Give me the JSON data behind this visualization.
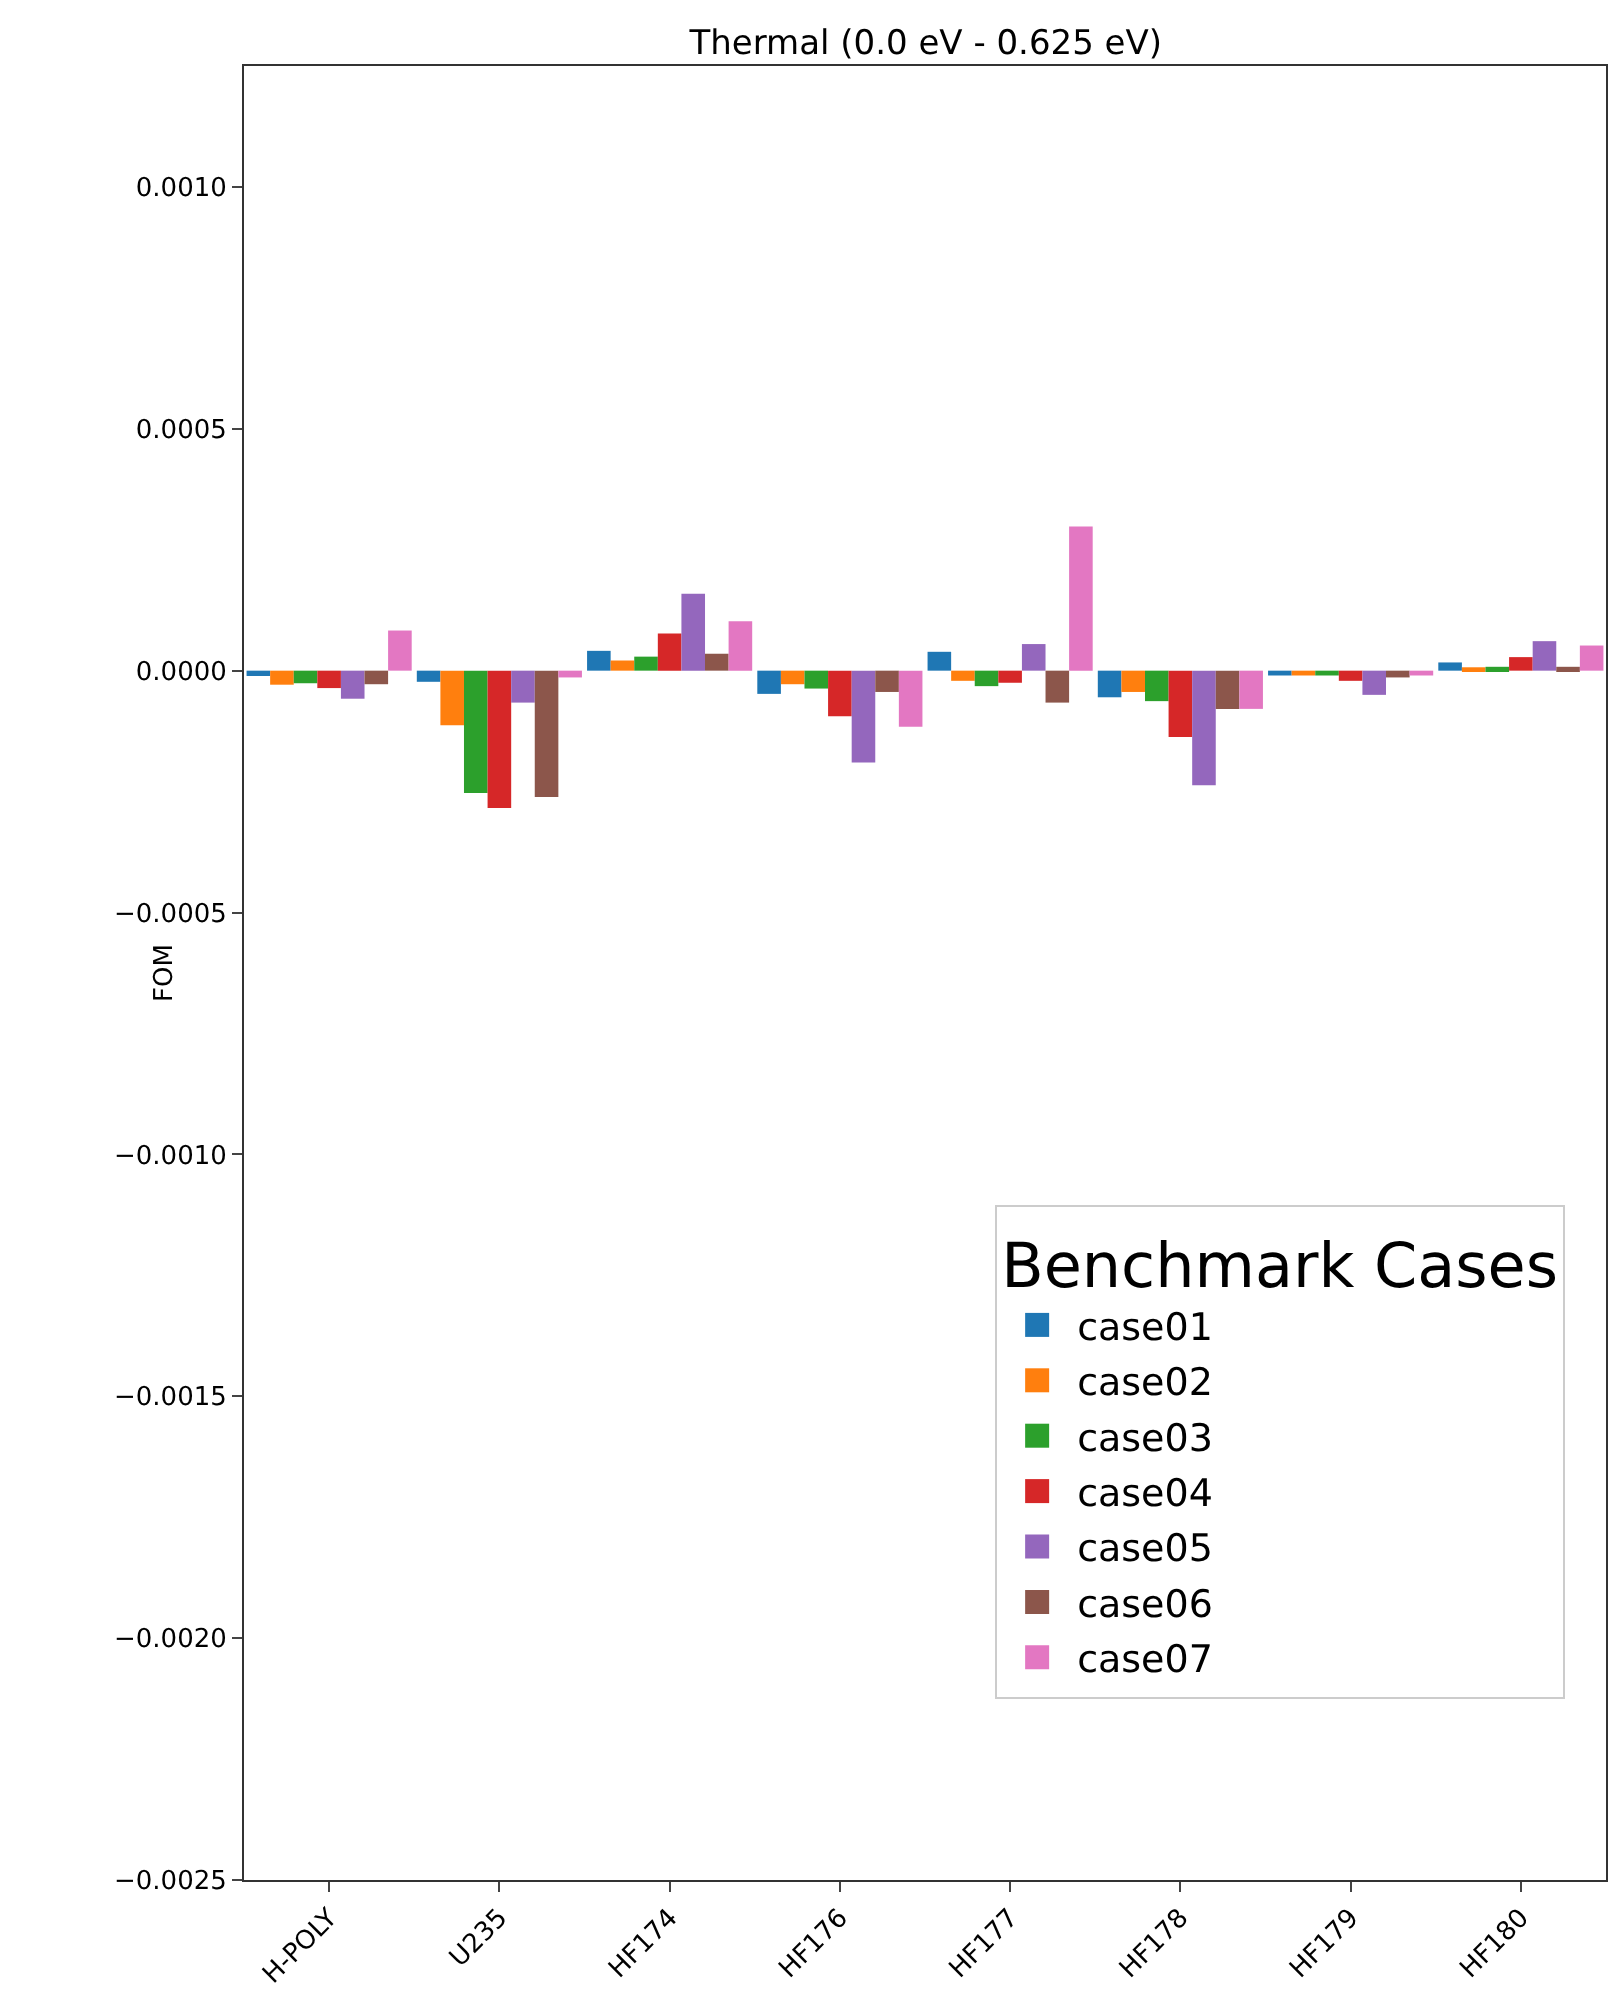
{
  "chart_data": {
    "type": "bar",
    "title": "Thermal (0.0 eV - 0.625 eV)",
    "ylabel": "FOM",
    "legend_title": "Benchmark Cases",
    "legend": "bottom right",
    "grid": false,
    "categories": [
      "H-POLY",
      "U235",
      "HF174",
      "HF176",
      "HF177",
      "HF178",
      "HF179",
      "HF180"
    ],
    "series": [
      {
        "name": "case01",
        "color": "#1f77b4",
        "values": [
          -1.1e-05,
          -2.3e-05,
          4.1e-05,
          -4.8e-05,
          3.9e-05,
          -5.5e-05,
          -1e-05,
          1.7e-05
        ]
      },
      {
        "name": "case02",
        "color": "#ff7f0e",
        "values": [
          -2.9e-05,
          -0.000113,
          2.1e-05,
          -2.8e-05,
          -2.1e-05,
          -4.4e-05,
          -1e-05,
          7e-06
        ]
      },
      {
        "name": "case03",
        "color": "#2ca02c",
        "values": [
          -2.6e-05,
          -0.000253,
          2.9e-05,
          -3.7e-05,
          -3.2e-05,
          -6.3e-05,
          -1e-05,
          8e-06
        ]
      },
      {
        "name": "case04",
        "color": "#d62728",
        "values": [
          -3.6e-05,
          -0.000284,
          7.7e-05,
          -9.4e-05,
          -2.5e-05,
          -0.000137,
          -2.1e-05,
          2.8e-05
        ]
      },
      {
        "name": "case05",
        "color": "#9467bd",
        "values": [
          -5.8e-05,
          -6.6e-05,
          0.000159,
          -0.00019,
          5.5e-05,
          -0.000237,
          -5e-05,
          6.1e-05
        ]
      },
      {
        "name": "case06",
        "color": "#8c564b",
        "values": [
          -2.8e-05,
          -0.000261,
          3.5e-05,
          -4.4e-05,
          -6.6e-05,
          -7.9e-05,
          -1.4e-05,
          8e-06
        ]
      },
      {
        "name": "case07",
        "color": "#e377c2",
        "values": [
          8.3e-05,
          -1.4e-05,
          0.000102,
          -0.000116,
          0.000298,
          -7.9e-05,
          -1e-05,
          5.2e-05
        ]
      }
    ],
    "ylim": [
      -0.0025,
      0.00125
    ],
    "yticks": [
      {
        "value": -0.0025,
        "label": "−0.0025"
      },
      {
        "value": -0.002,
        "label": "−0.0020"
      },
      {
        "value": -0.0015,
        "label": "−0.0015"
      },
      {
        "value": -0.001,
        "label": "−0.0010"
      },
      {
        "value": -0.0005,
        "label": "−0.0005"
      },
      {
        "value": 0,
        "label": "0.0000"
      },
      {
        "value": 0.0005,
        "label": "0.0005"
      },
      {
        "value": 0.001,
        "label": "0.0010"
      }
    ]
  }
}
